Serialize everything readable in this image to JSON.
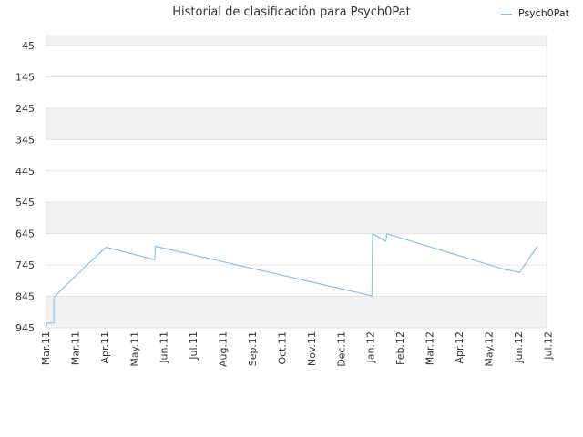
{
  "chart_data": {
    "type": "line",
    "title": "Historial de clasificación para Psych0Pat",
    "xlabel": "",
    "ylabel": "",
    "y_inverted": true,
    "ylim": [
      945,
      10
    ],
    "yticks": [
      45,
      145,
      245,
      345,
      445,
      545,
      645,
      745,
      845,
      945
    ],
    "xlim": [
      0,
      16.96
    ],
    "xticks": [
      "Mar.11",
      "Mar.11",
      "Apr.11",
      "May.11",
      "Jun.11",
      "Jul.11",
      "Aug.11",
      "Sep.11",
      "Oct.11",
      "Nov.11",
      "Dec.11",
      "Jan.12",
      "Feb.12",
      "Mar.12",
      "Apr.12",
      "May.12",
      "Jun.12",
      "Jul.12"
    ],
    "grid": true,
    "legend_position": "top-right",
    "series": [
      {
        "name": "Psych0Pat",
        "color": "#88c2f0",
        "points": [
          [
            0.0,
            945
          ],
          [
            0.05,
            930
          ],
          [
            0.25,
            930
          ],
          [
            0.25,
            930
          ],
          [
            0.28,
            930
          ],
          [
            0.28,
            928
          ],
          [
            0.28,
            930
          ],
          [
            0.28,
            848
          ],
          [
            1.4,
            745
          ],
          [
            2.05,
            688
          ],
          [
            3.7,
            728
          ],
          [
            3.72,
            685
          ],
          [
            11.05,
            843
          ],
          [
            11.07,
            645
          ],
          [
            11.52,
            670
          ],
          [
            11.55,
            645
          ],
          [
            15.5,
            758
          ],
          [
            16.05,
            768
          ],
          [
            16.65,
            685
          ]
        ]
      }
    ]
  }
}
